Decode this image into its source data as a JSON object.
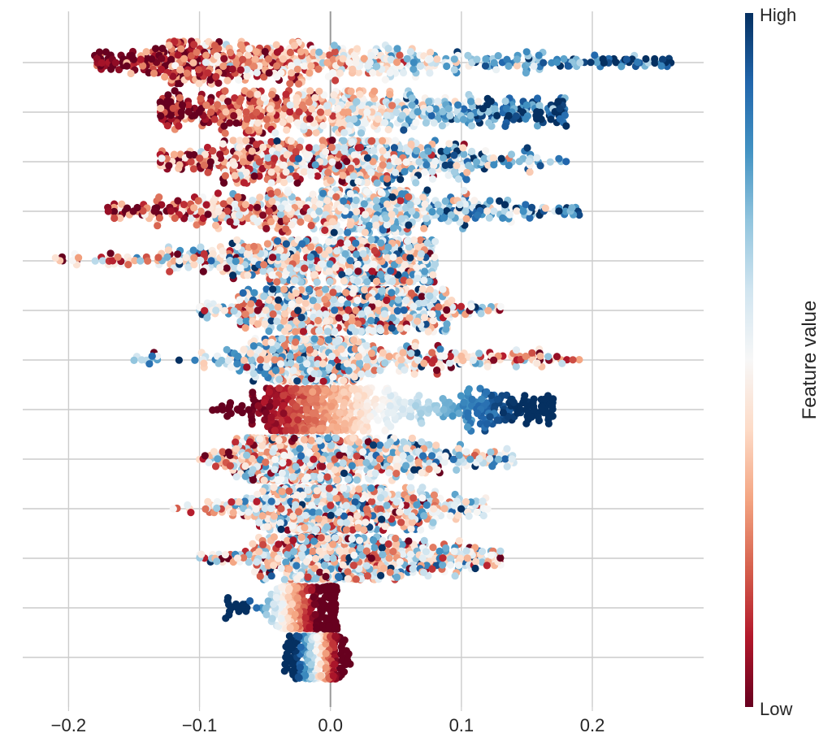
{
  "chart_data": {
    "type": "scatter",
    "subtype": "beeswarm",
    "xlim": [
      -0.235,
      0.285
    ],
    "xticks": [
      -0.2,
      -0.1,
      0.0,
      0.1,
      0.2
    ],
    "xtick_labels": [
      "−0.2",
      "−0.1",
      "0.0",
      "0.1",
      "0.2"
    ],
    "grid": true,
    "row_count": 13,
    "colorbar": {
      "title": "Feature value",
      "high_label": "High",
      "low_label": "Low",
      "colors": [
        "#67001f",
        "#b2182b",
        "#d6604d",
        "#f4a582",
        "#fddbc7",
        "#f7f7f7",
        "#d1e5f0",
        "#92c5de",
        "#4393c3",
        "#2166ac",
        "#053061"
      ]
    },
    "rows": [
      {
        "min": -0.18,
        "max": 0.26,
        "peaks": [
          [
            -0.1,
            0.045,
            1.0
          ],
          [
            -0.03,
            0.05,
            0.7
          ],
          [
            0.05,
            0.05,
            0.45
          ],
          [
            0.15,
            0.06,
            0.25
          ]
        ],
        "color_trend": 1.0,
        "color_noise": 0.32
      },
      {
        "min": -0.13,
        "max": 0.18,
        "peaks": [
          [
            -0.07,
            0.035,
            1.0
          ],
          [
            0.0,
            0.03,
            0.8
          ],
          [
            0.07,
            0.04,
            0.5
          ],
          [
            0.14,
            0.03,
            0.3
          ]
        ],
        "color_trend": 1.0,
        "color_noise": 0.3
      },
      {
        "min": -0.13,
        "max": 0.18,
        "peaks": [
          [
            -0.05,
            0.04,
            1.0
          ],
          [
            0.03,
            0.03,
            0.85
          ],
          [
            0.1,
            0.03,
            0.35
          ]
        ],
        "color_trend": 0.8,
        "color_noise": 0.45
      },
      {
        "min": -0.17,
        "max": 0.19,
        "peaks": [
          [
            -0.1,
            0.04,
            0.6
          ],
          [
            -0.01,
            0.035,
            1.0
          ],
          [
            0.05,
            0.035,
            0.7
          ],
          [
            0.12,
            0.03,
            0.25
          ]
        ],
        "color_trend": 0.9,
        "color_noise": 0.4
      },
      {
        "min": -0.21,
        "max": 0.08,
        "peaks": [
          [
            -0.03,
            0.03,
            0.8
          ],
          [
            0.04,
            0.025,
            1.0
          ],
          [
            -0.1,
            0.04,
            0.35
          ]
        ],
        "color_trend": 0.15,
        "color_noise": 0.5
      },
      {
        "min": -0.1,
        "max": 0.13,
        "peaks": [
          [
            -0.03,
            0.025,
            1.0
          ],
          [
            0.03,
            0.025,
            0.95
          ],
          [
            0.07,
            0.02,
            0.35
          ]
        ],
        "color_trend": 0.0,
        "color_noise": 0.5
      },
      {
        "min": -0.15,
        "max": 0.19,
        "peaks": [
          [
            -0.03,
            0.025,
            1.0
          ],
          [
            0.0,
            0.025,
            0.9
          ],
          [
            0.09,
            0.04,
            0.35
          ]
        ],
        "color_trend": -0.4,
        "color_noise": 0.45
      },
      {
        "min": -0.09,
        "max": 0.17,
        "peaks": [
          [
            -0.02,
            0.02,
            1.0
          ],
          [
            0.13,
            0.025,
            0.5
          ],
          [
            0.04,
            0.02,
            0.35
          ]
        ],
        "color_trend": 1.3,
        "color_noise": 0.05
      },
      {
        "min": -0.1,
        "max": 0.14,
        "peaks": [
          [
            -0.04,
            0.025,
            1.0
          ],
          [
            0.02,
            0.03,
            0.75
          ],
          [
            0.08,
            0.03,
            0.35
          ]
        ],
        "color_trend": 0.2,
        "color_noise": 0.45
      },
      {
        "min": -0.12,
        "max": 0.12,
        "peaks": [
          [
            -0.01,
            0.03,
            1.0
          ],
          [
            0.05,
            0.03,
            0.45
          ]
        ],
        "color_trend": 0.0,
        "color_noise": 0.45
      },
      {
        "min": -0.1,
        "max": 0.13,
        "peaks": [
          [
            -0.01,
            0.03,
            1.0
          ],
          [
            0.06,
            0.04,
            0.35
          ]
        ],
        "color_trend": 0.0,
        "color_noise": 0.5
      },
      {
        "min": -0.08,
        "max": 0.005,
        "peaks": [
          [
            0.0,
            0.002,
            1.0
          ],
          [
            -0.02,
            0.012,
            0.7
          ]
        ],
        "color_trend": -1.6,
        "color_noise": 0.05
      },
      {
        "min": -0.035,
        "max": 0.015,
        "peaks": [
          [
            0.0,
            0.002,
            1.0
          ],
          [
            -0.01,
            0.01,
            0.6
          ]
        ],
        "color_trend": -1.6,
        "color_noise": 0.05
      }
    ]
  }
}
